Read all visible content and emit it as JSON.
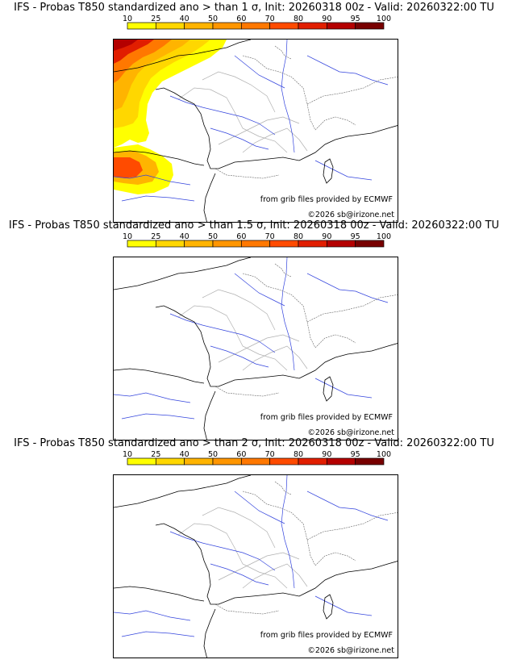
{
  "scale": {
    "labels": [
      "10",
      "25",
      "40",
      "50",
      "60",
      "70",
      "80",
      "90",
      "95",
      "100"
    ],
    "colors": [
      "#ffff00",
      "#ffd700",
      "#ffb400",
      "#ff9600",
      "#ff7800",
      "#ff4b00",
      "#e11e00",
      "#b40000",
      "#780000"
    ]
  },
  "credits": {
    "source": "from grib files provided by ECMWF",
    "copyright": "©2026 sb@irizone.net"
  },
  "panels": [
    {
      "title": "IFS - Probas T850  standardized ano > than 1 σ, Init: 20260318 00z - Valid: 20260322:00 TU",
      "has_prob": true
    },
    {
      "title": "IFS - Probas T850  standardized ano > than 1.5 σ, Init: 20260318 00z - Valid: 20260322:00 TU",
      "has_prob": false
    },
    {
      "title": "IFS - Probas T850  standardized ano > than 2 σ, Init: 20260318 00z - Valid: 20260322:00 TU",
      "has_prob": false
    }
  ]
}
